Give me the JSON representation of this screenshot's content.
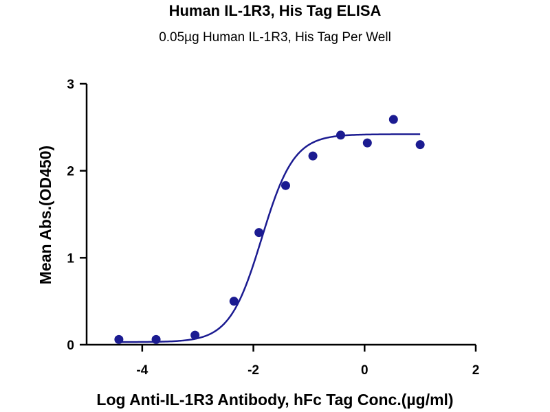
{
  "chart_data": {
    "type": "scatter",
    "title": "Human IL-1R3, His Tag ELISA",
    "subtitle": "0.05µg Human IL-1R3, His Tag Per Well",
    "xlabel": "Log Anti-IL-1R3 Antibody, hFc Tag Conc.(µg/ml)",
    "ylabel": "Mean Abs.(OD450)",
    "xlim": [
      -5,
      2
    ],
    "ylim": [
      0,
      3
    ],
    "x_ticks": [
      -4,
      -2,
      0,
      2
    ],
    "x_tick_labels": [
      "-4",
      "-2",
      "0",
      "2"
    ],
    "y_ticks": [
      0,
      1,
      2,
      3
    ],
    "y_tick_labels": [
      "0",
      "1",
      "2",
      "3"
    ],
    "grid": false,
    "series": [
      {
        "points": [
          {
            "x": -4.42,
            "y": 0.06
          },
          {
            "x": -3.75,
            "y": 0.06
          },
          {
            "x": -3.05,
            "y": 0.11
          },
          {
            "x": -2.35,
            "y": 0.5
          },
          {
            "x": -1.9,
            "y": 1.29
          },
          {
            "x": -1.42,
            "y": 1.83
          },
          {
            "x": -0.93,
            "y": 2.17
          },
          {
            "x": -0.43,
            "y": 2.41
          },
          {
            "x": 0.05,
            "y": 2.32
          },
          {
            "x": 0.52,
            "y": 2.59
          },
          {
            "x": 1.0,
            "y": 2.3
          }
        ],
        "fit_curve": {
          "model": "four-parameter logistic",
          "bottom": 0.03,
          "top": 2.42,
          "log_ec50": -1.85,
          "hill_slope": 1.5,
          "x_range": [
            -4.42,
            1.0
          ]
        },
        "color": "#1b1b91"
      }
    ]
  }
}
